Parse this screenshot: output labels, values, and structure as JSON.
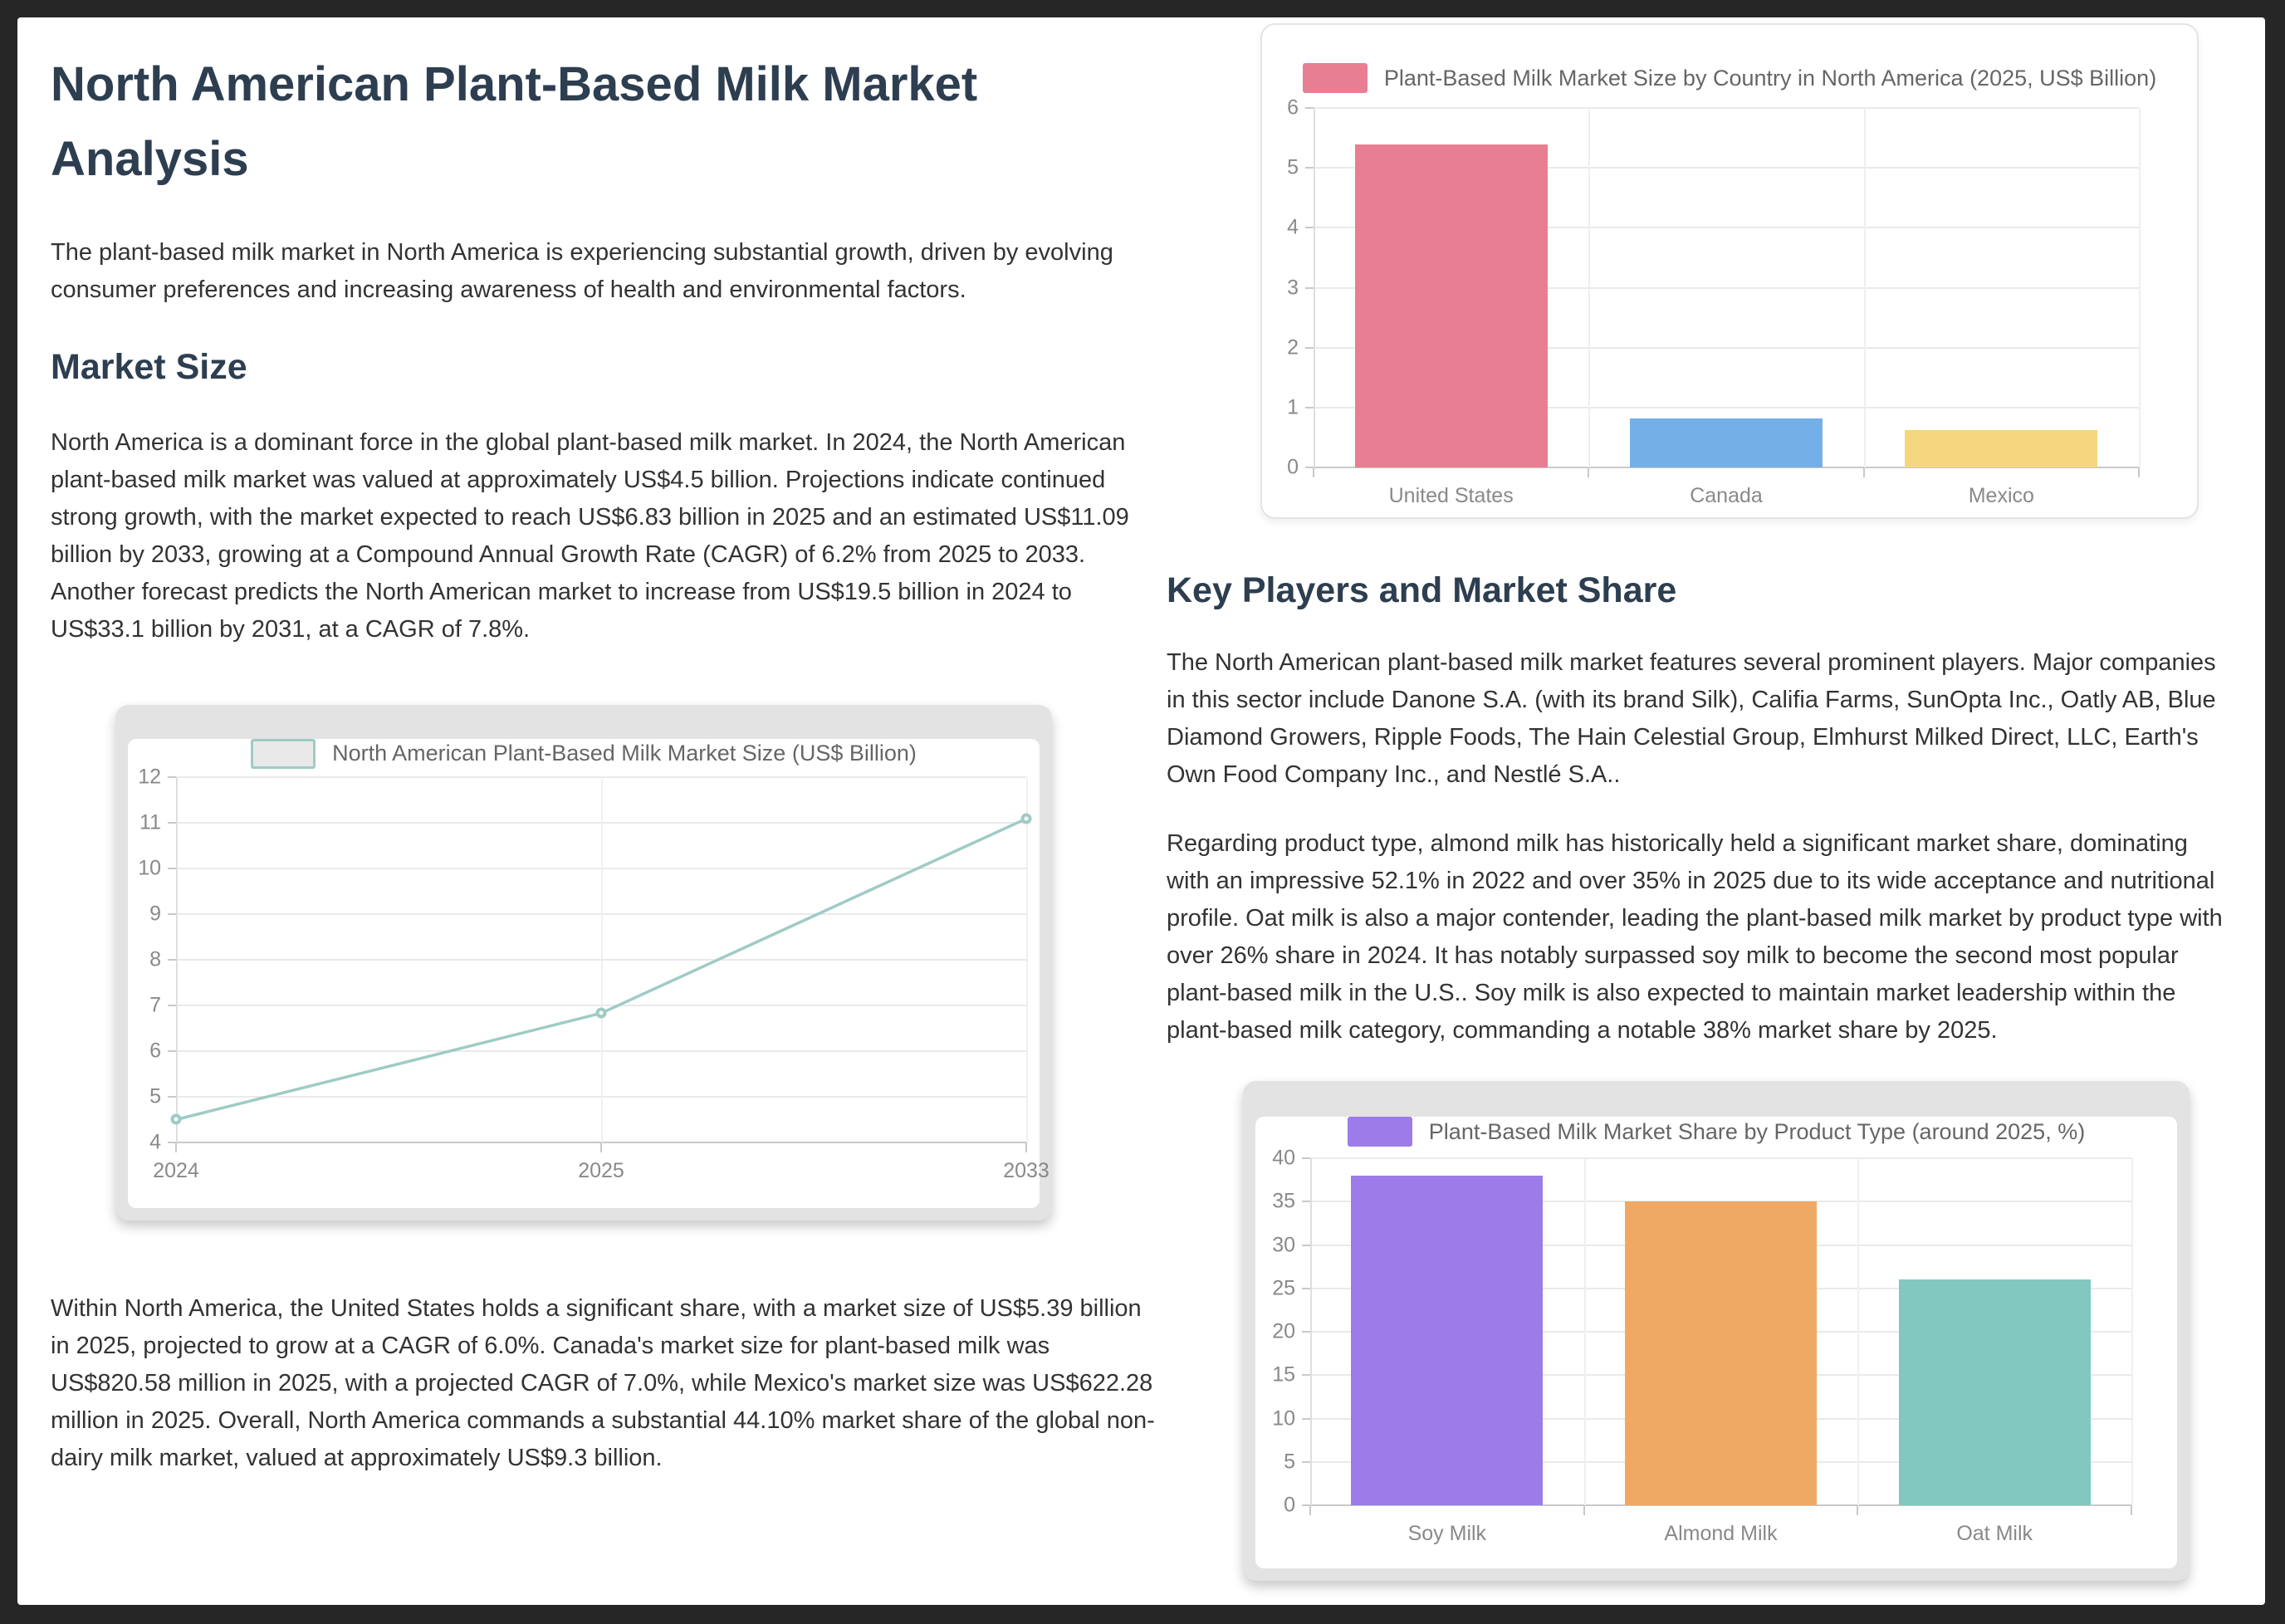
{
  "page": {
    "title": "North American Plant-Based Milk Market Analysis",
    "intro": "The plant-based milk market in North America is experiencing substantial growth, driven by evolving consumer preferences and increasing awareness of health and environmental factors.",
    "sections": {
      "market_size": {
        "heading": "Market Size",
        "p1": "North America is a dominant force in the global plant-based milk market. In 2024, the North American plant-based milk market was valued at approximately US$4.5 billion. Projections indicate continued strong growth, with the market expected to reach US$6.83 billion in 2025 and an estimated US$11.09 billion by 2033, growing at a Compound Annual Growth Rate (CAGR) of 6.2% from 2025 to 2033. Another forecast predicts the North American market to increase from US$19.5 billion in 2024 to US$33.1 billion by 2031, at a CAGR of 7.8%.",
        "p2": "Within North America, the United States holds a significant share, with a market size of US$5.39 billion in 2025, projected to grow at a CAGR of 6.0%. Canada's market size for plant-based milk was US$820.58 million in 2025, with a projected CAGR of 7.0%, while Mexico's market size was US$622.28 million in 2025. Overall, North America commands a substantial 44.10% market share of the global non-dairy milk market, valued at approximately US$9.3 billion."
      },
      "key_players": {
        "heading": "Key Players and Market Share",
        "p1": "The North American plant-based milk market features several prominent players. Major companies in this sector include Danone S.A. (with its brand Silk), Califia Farms, SunOpta Inc., Oatly AB, Blue Diamond Growers, Ripple Foods, The Hain Celestial Group, Elmhurst Milked Direct, LLC, Earth's Own Food Company Inc., and Nestlé S.A..",
        "p2": "Regarding product type, almond milk has historically held a significant market share, dominating with an impressive 52.1% in 2022 and over 35% in 2025 due to its wide acceptance and nutritional profile. Oat milk is also a major contender, leading the plant-based milk market by product type with over 26% share in 2024. It has notably surpassed soy milk to become the second most popular plant-based milk in the U.S.. Soy milk is also expected to maintain market leadership within the plant-based milk category, commanding a notable 38% market share by 2025."
      }
    }
  },
  "colors": {
    "page_background": "#ffffff",
    "outer_background": "#262626",
    "heading": "#2d3e50",
    "body_text": "#333333",
    "axis_text": "#898989",
    "legend_text": "#666666",
    "gridline": "#eaeaea",
    "card_frame_gray": "#e3e3e3"
  },
  "chart_data": [
    {
      "type": "line",
      "title": "North American Plant-Based Milk Market Size (US$ Billion)",
      "legend": "North American Plant-Based Milk Market Size (US$ Billion)",
      "x": [
        "2024",
        "2025",
        "2033"
      ],
      "values": [
        4.5,
        6.83,
        11.09
      ],
      "xlabel": "",
      "ylabel": "",
      "ylim": [
        4,
        12
      ],
      "ytick_step": 1,
      "grid": true,
      "legend_position": "top",
      "line_color": "#9fcbc5",
      "legend_fill": "#e9e9e9",
      "legend_border": "#9fcbc5"
    },
    {
      "type": "bar",
      "title": "Plant-Based Milk Market Size by Country in North America (2025, US$ Billion)",
      "legend": "Plant-Based Milk Market Size by Country in North America (2025, US$ Billion)",
      "categories": [
        "United States",
        "Canada",
        "Mexico"
      ],
      "values": [
        5.39,
        0.82,
        0.62
      ],
      "colors": [
        "#e87e91",
        "#74b0e7",
        "#f3d67e"
      ],
      "xlabel": "",
      "ylabel": "",
      "ylim": [
        0,
        6
      ],
      "ytick_step": 1,
      "grid": true,
      "legend_position": "top"
    },
    {
      "type": "bar",
      "title": "Plant-Based Milk Market Share by Product Type (around 2025, %)",
      "legend": "Plant-Based Milk Market Share by Product Type (around 2025, %)",
      "categories": [
        "Soy Milk",
        "Almond Milk",
        "Oat Milk"
      ],
      "values": [
        38,
        35,
        26
      ],
      "colors": [
        "#9b7ce9",
        "#f0a964",
        "#82c8c0"
      ],
      "xlabel": "",
      "ylabel": "",
      "ylim": [
        0,
        40
      ],
      "ytick_step": 5,
      "grid": true,
      "legend_position": "top"
    }
  ]
}
